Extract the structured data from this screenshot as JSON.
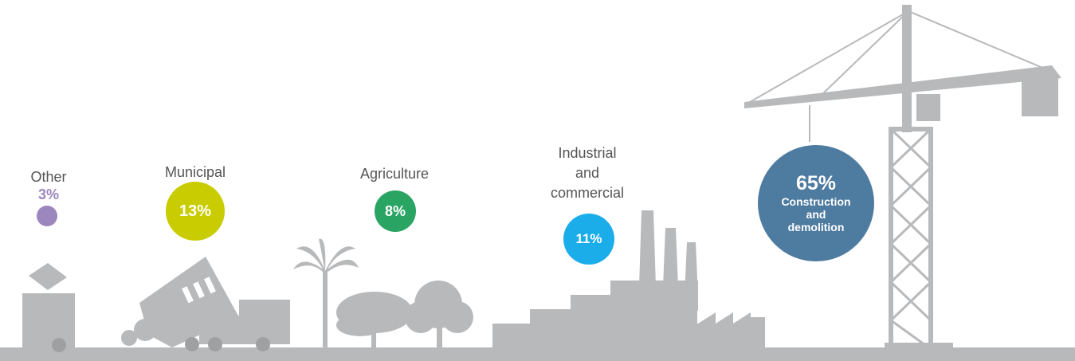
{
  "chart_data": {
    "type": "bubble",
    "unit": "%",
    "categories": [
      "Other",
      "Municipal",
      "Agriculture",
      "Industrial and commercial",
      "Construction and demolition"
    ],
    "values": [
      3,
      13,
      8,
      11,
      65
    ],
    "colors": [
      "#9b86bd",
      "#c8cc00",
      "#2aa463",
      "#1badea",
      "#4e7ba0"
    ],
    "labels": {
      "other_name": "Other",
      "other_pct": "3%",
      "municipal_name": "Municipal",
      "municipal_pct": "13%",
      "agriculture_name": "Agriculture",
      "agriculture_pct": "8%",
      "industrial_line1": "Industrial",
      "industrial_line2": "and",
      "industrial_line3": "commercial",
      "industrial_pct": "11%",
      "construction_pct": "65%",
      "construction_line1": "Construction",
      "construction_line2": "and",
      "construction_line3": "demolition"
    }
  },
  "scene": {
    "silhouette_color": "#b8b9bb",
    "icons": [
      "waste-bin-icon",
      "dump-truck-icon",
      "palm-tree-icon",
      "tree-icon",
      "factory-icon",
      "tower-crane-icon"
    ]
  }
}
